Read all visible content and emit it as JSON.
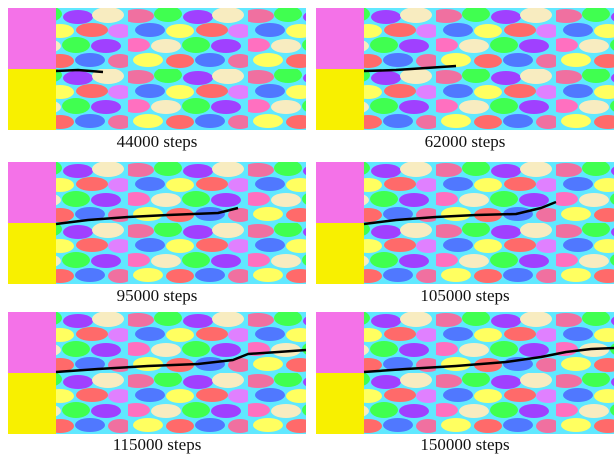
{
  "panels": [
    {
      "caption": "44000 steps"
    },
    {
      "caption": "62000 steps"
    },
    {
      "caption": "95000 steps"
    },
    {
      "caption": "105000 steps"
    },
    {
      "caption": "115000 steps"
    },
    {
      "caption": "150000 steps"
    }
  ]
}
